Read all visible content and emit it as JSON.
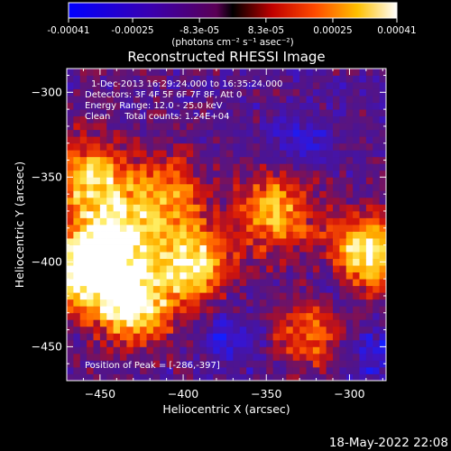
{
  "colorbar": {
    "tick_labels": [
      "-0.00041",
      "-0.00025",
      "-8.3e-05",
      "8.3e-05",
      "0.00025",
      "0.00041"
    ],
    "tick_values": [
      -0.00041,
      -0.00025,
      -8.3e-05,
      8.3e-05,
      0.00025,
      0.00041
    ],
    "range": [
      -0.00041,
      0.00041
    ],
    "unit_label": "(photons cm⁻² s⁻¹ asec⁻²)"
  },
  "info": {
    "line1": "1-Dec-2013 16:29:24.000 to 16:35:24.000",
    "line2": "Detectors: 3F 4F 5F 6F 7F 8F, Att 0",
    "line3": "Energy Range: 12.0 - 25.0 keV",
    "line4": "Clean     Total counts: 1.24E+04",
    "peak": "Position of Peak = [-286,-397]"
  },
  "footer": {
    "timestamp": "18-May-2022 22:08"
  },
  "chart_data": {
    "type": "heatmap",
    "title": "Reconstructed RHESSI Image",
    "xlabel": "Heliocentric X (arcsec)",
    "ylabel": "Heliocentric Y (arcsec)",
    "xlim": [
      -470,
      -278
    ],
    "ylim": [
      -470,
      -286
    ],
    "x_ticks": [
      -450,
      -400,
      -350,
      -300
    ],
    "x_tick_labels": [
      "−450",
      "−400",
      "−350",
      "−300"
    ],
    "y_ticks": [
      -450,
      -400,
      -350,
      -300
    ],
    "y_tick_labels": [
      "−450",
      "−400",
      "−350",
      "−300"
    ],
    "colormap": "red-temperature (blue to white)",
    "bright_regions": [
      {
        "x": -455,
        "y": -350,
        "level": 0.8
      },
      {
        "x": -460,
        "y": -405,
        "level": 1.0
      },
      {
        "x": -430,
        "y": -425,
        "level": 0.95
      },
      {
        "x": -440,
        "y": -385,
        "level": 0.85
      },
      {
        "x": -395,
        "y": -400,
        "level": 0.9
      },
      {
        "x": -410,
        "y": -360,
        "level": 0.6
      },
      {
        "x": -345,
        "y": -370,
        "level": 0.75
      },
      {
        "x": -290,
        "y": -395,
        "level": 0.95
      },
      {
        "x": -325,
        "y": -440,
        "level": 0.55
      }
    ],
    "dark_regions": [
      {
        "x": -330,
        "y": -330
      },
      {
        "x": -310,
        "y": -415
      },
      {
        "x": -285,
        "y": -455
      },
      {
        "x": -370,
        "y": -445
      }
    ]
  }
}
